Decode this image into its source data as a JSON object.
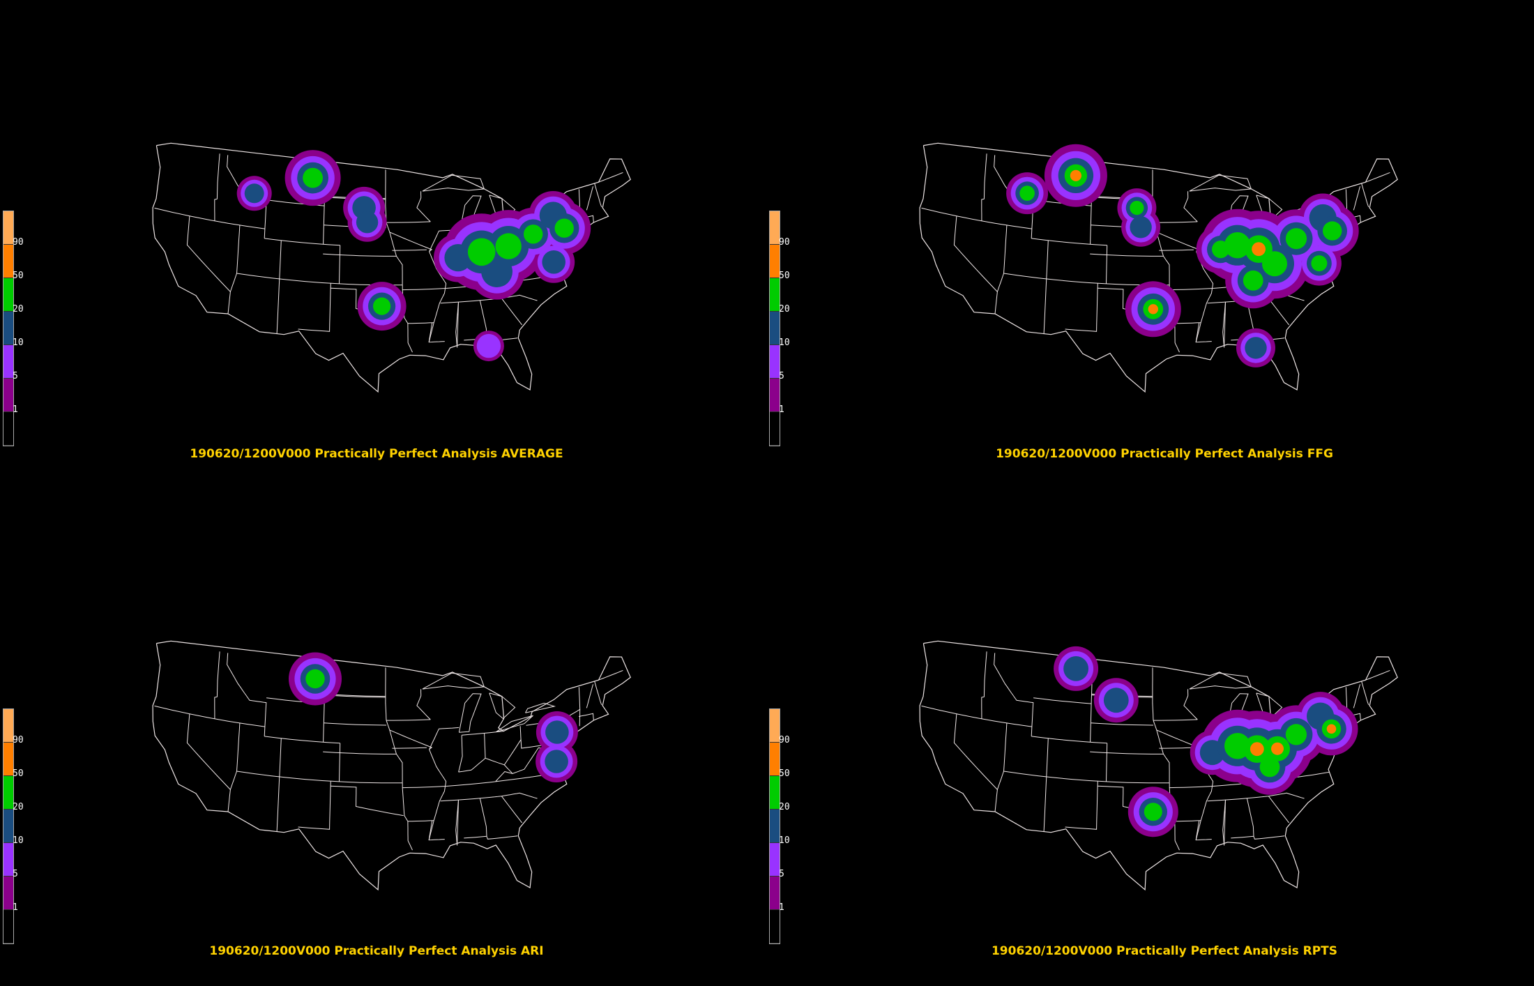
{
  "panels": [
    {
      "id": "average",
      "caption": "190620/1200V000 Practically Perfect Analysis AVERAGE",
      "blobs": [
        {
          "lon": -105.5,
          "lat": 47.8,
          "r": 40,
          "level": 3
        },
        {
          "lon": -112.5,
          "lat": 45.5,
          "r": 25,
          "level": 2
        },
        {
          "lon": -99.2,
          "lat": 45.0,
          "r": 30,
          "level": 2
        },
        {
          "lon": -98.8,
          "lat": 43.5,
          "r": 28,
          "level": 2
        },
        {
          "lon": -97.0,
          "lat": 34.8,
          "r": 35,
          "level": 3
        },
        {
          "lon": -88.0,
          "lat": 39.6,
          "r": 35,
          "level": 2
        },
        {
          "lon": -85.2,
          "lat": 40.0,
          "r": 55,
          "level": 3
        },
        {
          "lon": -82.0,
          "lat": 40.3,
          "r": 52,
          "level": 3
        },
        {
          "lon": -83.5,
          "lat": 37.8,
          "r": 40,
          "level": 2
        },
        {
          "lon": -79.0,
          "lat": 41.2,
          "r": 38,
          "level": 3
        },
        {
          "lon": -76.5,
          "lat": 42.8,
          "r": 35,
          "level": 2
        },
        {
          "lon": -75.3,
          "lat": 41.3,
          "r": 38,
          "level": 3
        },
        {
          "lon": -76.8,
          "lat": 38.0,
          "r": 30,
          "level": 2
        },
        {
          "lon": -84.8,
          "lat": 30.2,
          "r": 22,
          "level": 1
        }
      ]
    },
    {
      "id": "ffg",
      "caption": "190620/1200V000 Practically Perfect Analysis FFG",
      "blobs": [
        {
          "lon": -106.0,
          "lat": 48.0,
          "r": 45,
          "level": 4
        },
        {
          "lon": -111.8,
          "lat": 45.6,
          "r": 30,
          "level": 3
        },
        {
          "lon": -98.5,
          "lat": 45.0,
          "r": 28,
          "level": 3
        },
        {
          "lon": -98.0,
          "lat": 43.0,
          "r": 28,
          "level": 2
        },
        {
          "lon": -96.5,
          "lat": 34.5,
          "r": 40,
          "level": 4
        },
        {
          "lon": -88.5,
          "lat": 40.5,
          "r": 35,
          "level": 3
        },
        {
          "lon": -86.5,
          "lat": 40.8,
          "r": 52,
          "level": 3
        },
        {
          "lon": -84.0,
          "lat": 40.2,
          "r": 55,
          "level": 4
        },
        {
          "lon": -82.2,
          "lat": 38.5,
          "r": 50,
          "level": 3
        },
        {
          "lon": -84.8,
          "lat": 37.0,
          "r": 40,
          "level": 3
        },
        {
          "lon": -79.5,
          "lat": 40.8,
          "r": 42,
          "level": 3
        },
        {
          "lon": -76.2,
          "lat": 42.5,
          "r": 35,
          "level": 2
        },
        {
          "lon": -75.2,
          "lat": 41.0,
          "r": 38,
          "level": 3
        },
        {
          "lon": -77.0,
          "lat": 37.9,
          "r": 32,
          "level": 3
        },
        {
          "lon": -84.8,
          "lat": 30.0,
          "r": 28,
          "level": 2
        }
      ]
    },
    {
      "id": "ari",
      "caption": "190620/1200V000 Practically Perfect Analysis ARI",
      "blobs": [
        {
          "lon": -105.2,
          "lat": 47.5,
          "r": 38,
          "level": 3
        },
        {
          "lon": -76.2,
          "lat": 40.8,
          "r": 30,
          "level": 2
        },
        {
          "lon": -76.5,
          "lat": 37.8,
          "r": 30,
          "level": 2
        }
      ]
    },
    {
      "id": "rpts",
      "caption": "190620/1200V000 Practically Perfect Analysis RPTS",
      "blobs": [
        {
          "lon": -106.0,
          "lat": 48.5,
          "r": 32,
          "level": 2
        },
        {
          "lon": -101.0,
          "lat": 45.5,
          "r": 32,
          "level": 2
        },
        {
          "lon": -96.5,
          "lat": 34.0,
          "r": 36,
          "level": 3
        },
        {
          "lon": -89.5,
          "lat": 40.0,
          "r": 32,
          "level": 2
        },
        {
          "lon": -86.5,
          "lat": 40.5,
          "r": 52,
          "level": 3
        },
        {
          "lon": -84.2,
          "lat": 40.0,
          "r": 55,
          "level": 4
        },
        {
          "lon": -81.8,
          "lat": 39.8,
          "r": 50,
          "level": 4
        },
        {
          "lon": -82.8,
          "lat": 38.0,
          "r": 40,
          "level": 3
        },
        {
          "lon": -79.5,
          "lat": 41.0,
          "r": 42,
          "level": 3
        },
        {
          "lon": -76.5,
          "lat": 42.5,
          "r": 35,
          "level": 2
        },
        {
          "lon": -75.3,
          "lat": 41.0,
          "r": 38,
          "level": 4
        }
      ]
    }
  ],
  "legend": {
    "labels": [
      "1",
      "5",
      "10",
      "20",
      "50",
      "90"
    ],
    "colors": [
      "#000000",
      "#8b008b",
      "#9933ff",
      "#1a4d80",
      "#00cc00",
      "#ff7f00",
      "#ffaa55"
    ]
  }
}
